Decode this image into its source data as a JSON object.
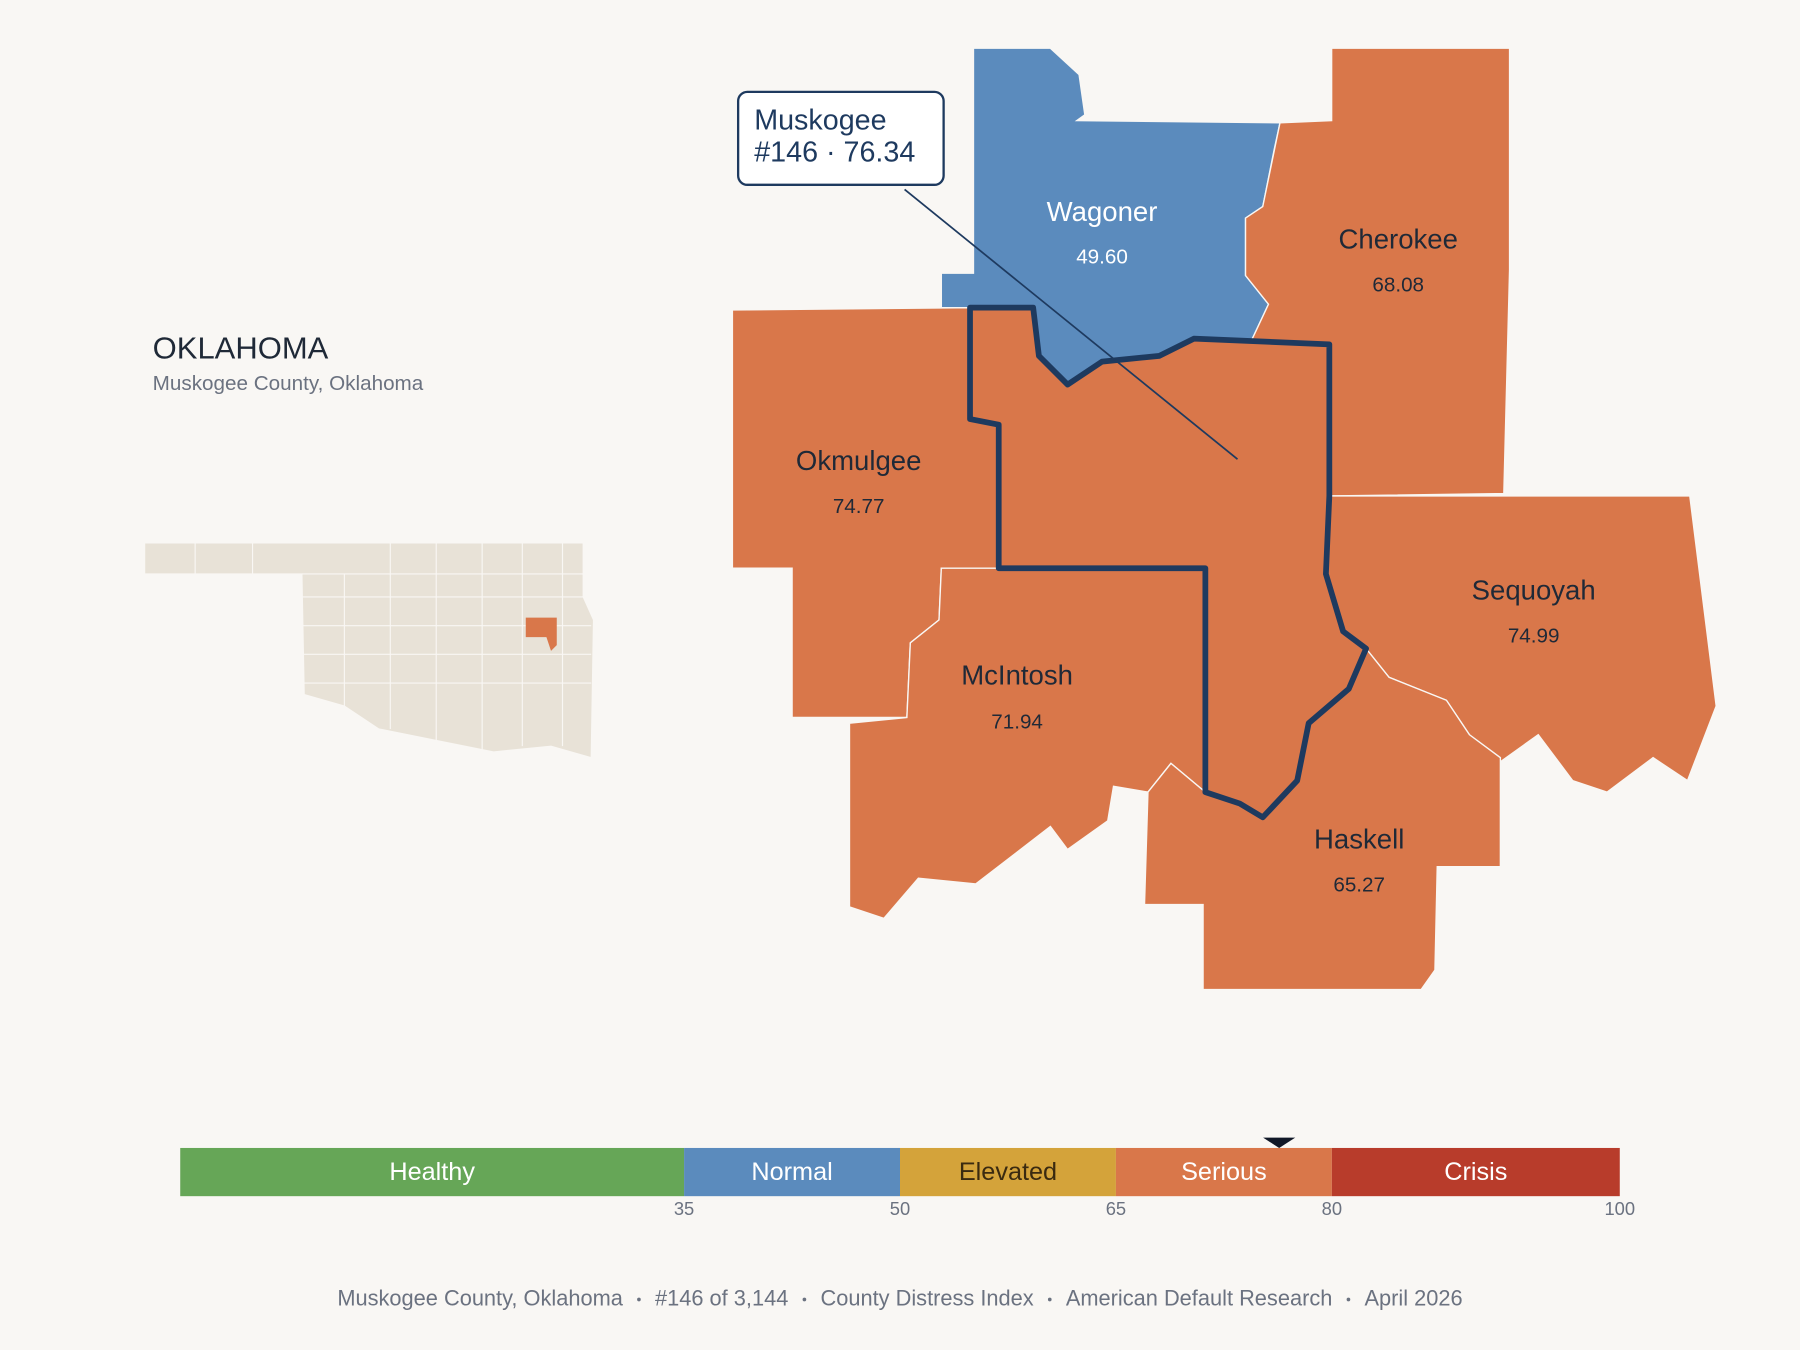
{
  "header": {
    "title": "OKLAHOMA",
    "subtitle": "Muskogee County, Oklahoma"
  },
  "callout": {
    "name": "Muskogee",
    "label": "#146 · 76.34",
    "value": 76.34,
    "color": "#d9774a",
    "border": "#1e3a5f"
  },
  "counties": [
    {
      "name": "Wagoner",
      "score": "49.60",
      "color": "#5b8bbd"
    },
    {
      "name": "Cherokee",
      "score": "68.08",
      "color": "#d9774a"
    },
    {
      "name": "Okmulgee",
      "score": "74.77",
      "color": "#d9774a"
    },
    {
      "name": "McIntosh",
      "score": "71.94",
      "color": "#d9774a"
    },
    {
      "name": "Sequoyah",
      "score": "74.99",
      "color": "#d9774a"
    },
    {
      "name": "Haskell",
      "score": "65.27",
      "color": "#d9774a"
    }
  ],
  "legend": {
    "xlim": [
      0,
      100
    ],
    "xticks": [
      35,
      50,
      65,
      80,
      100
    ],
    "bands": [
      {
        "label": "Healthy",
        "color": "#66a657"
      },
      {
        "label": "Normal",
        "color": "#5b8bbd"
      },
      {
        "label": "Elevated",
        "color": "#d4a33a"
      },
      {
        "label": "Serious",
        "color": "#d9774a"
      },
      {
        "label": "Crisis",
        "color": "#b83c2b"
      }
    ]
  },
  "footer": [
    "Muskogee County, Oklahoma",
    "#146 of 3,144",
    "County Distress Index",
    "American Default Research",
    "April 2026"
  ]
}
